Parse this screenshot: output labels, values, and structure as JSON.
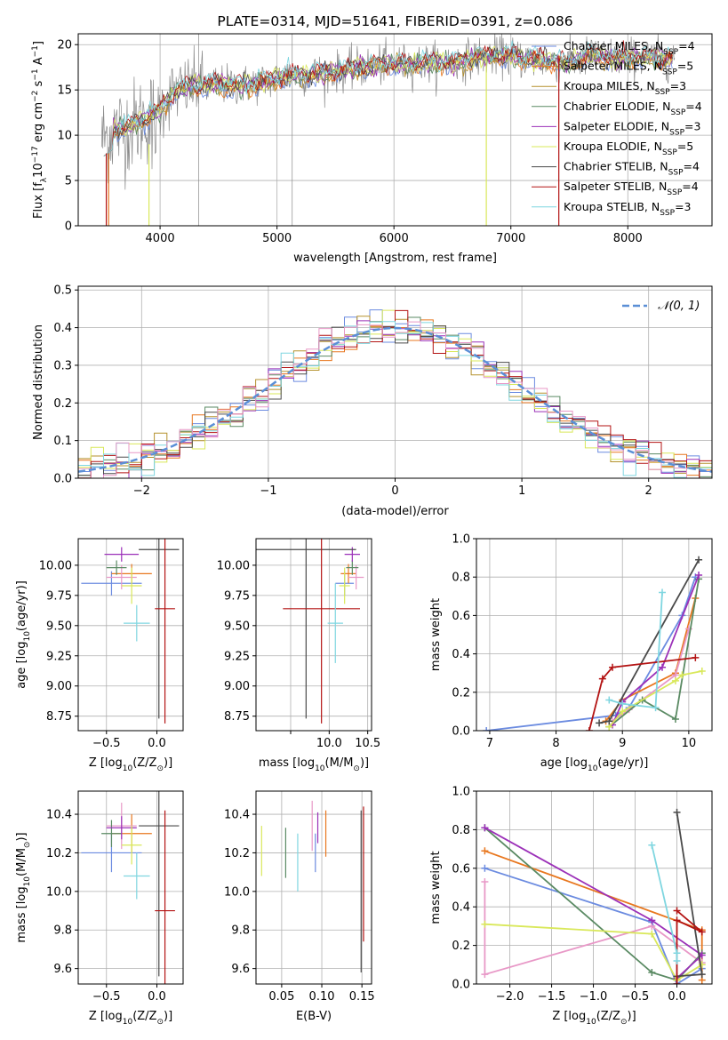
{
  "chart_data": [
    {
      "id": "spectrum",
      "type": "line",
      "title": "PLATE=0314, MJD=51641, FIBERID=0391, z=0.086",
      "xlabel": "wavelength [Angstrom, rest frame]",
      "ylabel": "Flux [fλ10⁻¹⁷ erg cm⁻² s⁻¹ A⁻¹]",
      "xlim": [
        3300,
        8720
      ],
      "ylim": [
        0,
        21.2
      ],
      "xticks": [
        4000,
        5000,
        6000,
        7000,
        8000
      ],
      "yticks": [
        0,
        5,
        10,
        15,
        20
      ],
      "grid": true,
      "legend_position": "top-right",
      "continuum": {
        "x": [
          3500,
          3600,
          3700,
          3800,
          3900,
          4000,
          4100,
          4300,
          4500,
          4700,
          4900,
          5100,
          5300,
          5500,
          5700,
          5900,
          6100,
          6300,
          6500,
          6700,
          6900,
          7100,
          7300,
          7500,
          7700,
          7900,
          8100,
          8300,
          8400
        ],
        "y": [
          9.5,
          10.5,
          10.8,
          11.3,
          12.0,
          12.8,
          14.6,
          15.5,
          15.6,
          15.5,
          15.9,
          16.6,
          16.7,
          17.0,
          17.4,
          17.8,
          17.8,
          18.0,
          18.0,
          18.6,
          18.8,
          18.5,
          18.2,
          18.0,
          18.8,
          18.5,
          18.6,
          18.5,
          18.5
        ]
      },
      "series": [
        {
          "name": "Chabrier MILES, N",
          "sub": "SSP",
          "suffix": "=4",
          "color": "#6b8be0"
        },
        {
          "name": "Salpeter MILES, N",
          "sub": "SSP",
          "suffix": "=5",
          "color": "#e8771f"
        },
        {
          "name": "Kroupa MILES, N",
          "sub": "SSP",
          "suffix": "=3",
          "color": "#b5922e"
        },
        {
          "name": "Chabrier ELODIE, N",
          "sub": "SSP",
          "suffix": "=4",
          "color": "#5a8a63"
        },
        {
          "name": "Salpeter ELODIE, N",
          "sub": "SSP",
          "suffix": "=3",
          "color": "#9b30b8"
        },
        {
          "name": "Kroupa ELODIE, N",
          "sub": "SSP",
          "suffix": "=5",
          "color": "#d9e85a"
        },
        {
          "name": "Chabrier STELIB, N",
          "sub": "SSP",
          "suffix": "=4",
          "color": "#4a4a4a"
        },
        {
          "name": "Salpeter STELIB, N",
          "sub": "SSP",
          "suffix": "=4",
          "color": "#b31313"
        },
        {
          "name": "Kroupa STELIB, N",
          "sub": "SSP",
          "suffix": "=3",
          "color": "#7fd6e0"
        }
      ],
      "data_color": "#8a8a8a"
    },
    {
      "id": "residuals",
      "type": "line",
      "xlabel": "(data-model)/error",
      "ylabel": "Normed distribution",
      "xlim": [
        -2.5,
        2.5
      ],
      "ylim": [
        0,
        0.51
      ],
      "xticks": [
        -2,
        -1,
        0,
        1,
        2
      ],
      "yticks": [
        0.0,
        0.1,
        0.2,
        0.3,
        0.4,
        0.5
      ],
      "grid": true,
      "legend": "𝒩(0, 1)",
      "legend_position": "top-right",
      "bin_width": 0.1,
      "gaussian_color": "#5b8fd6"
    },
    {
      "id": "age-vs-Z",
      "type": "scatter",
      "xlabel": "Z [log₁₀(Z/Z⊙)]",
      "ylabel": "age  [log₁₀(age/yr)]",
      "xlim": [
        -0.78,
        0.26
      ],
      "ylim": [
        8.63,
        10.22
      ],
      "xticks": [
        -0.5,
        0.0
      ],
      "yticks": [
        8.75,
        9.0,
        9.25,
        9.5,
        9.75,
        10.0
      ],
      "grid": true,
      "points": [
        {
          "x": -0.45,
          "y": 9.85,
          "xerr": 0.3,
          "yerr": 0.1,
          "color": "#6b8be0"
        },
        {
          "x": -0.25,
          "y": 9.93,
          "xerr": 0.2,
          "yerr": 0.08,
          "color": "#e8771f"
        },
        {
          "x": -0.35,
          "y": 9.9,
          "xerr": 0.15,
          "yerr": 0.1,
          "color": "#e898c7"
        },
        {
          "x": -0.4,
          "y": 9.98,
          "xerr": 0.1,
          "yerr": 0.06,
          "color": "#5a8a63"
        },
        {
          "x": -0.35,
          "y": 10.09,
          "xerr": 0.17,
          "yerr": 0.06,
          "color": "#9b30b8"
        },
        {
          "x": -0.25,
          "y": 9.83,
          "xerr": 0.1,
          "yerr": 0.15,
          "color": "#d9e85a"
        },
        {
          "x": 0.02,
          "y": 10.13,
          "xerr": 0.2,
          "yerr": 1.4,
          "color": "#4a4a4a"
        },
        {
          "x": 0.08,
          "y": 9.64,
          "xerr": 0.1,
          "yerr": 0.95,
          "color": "#b31313"
        },
        {
          "x": -0.2,
          "y": 9.52,
          "xerr": 0.13,
          "yerr": 0.15,
          "color": "#7fd6e0"
        }
      ]
    },
    {
      "id": "age-vs-mass",
      "type": "scatter",
      "xlabel": "mass [log₁₀(M/M⊙)]",
      "ylabel": "",
      "xlim": [
        9.05,
        10.55
      ],
      "ylim": [
        8.63,
        10.22
      ],
      "xticks": [
        9.5,
        10.0,
        10.5
      ],
      "xticklabels": [
        "",
        "10.0",
        "10.5"
      ],
      "yticks": [
        8.75,
        9.0,
        9.25,
        9.5,
        9.75,
        10.0
      ],
      "grid": true,
      "points": [
        {
          "x": 10.2,
          "y": 9.85,
          "xerr": 0.12,
          "yerr": 0.1,
          "color": "#6b8be0"
        },
        {
          "x": 10.25,
          "y": 9.93,
          "xerr": 0.1,
          "yerr": 0.08,
          "color": "#e8771f"
        },
        {
          "x": 10.35,
          "y": 9.9,
          "xerr": 0.1,
          "yerr": 0.1,
          "color": "#e898c7"
        },
        {
          "x": 10.3,
          "y": 9.98,
          "xerr": 0.08,
          "yerr": 0.06,
          "color": "#5a8a63"
        },
        {
          "x": 10.3,
          "y": 10.09,
          "xerr": 0.1,
          "yerr": 0.06,
          "color": "#9b30b8"
        },
        {
          "x": 10.2,
          "y": 9.83,
          "xerr": 0.07,
          "yerr": 0.15,
          "color": "#d9e85a"
        },
        {
          "x": 9.7,
          "y": 10.13,
          "xerr": 0.65,
          "yerr": 1.4,
          "color": "#4a4a4a"
        },
        {
          "x": 9.9,
          "y": 9.64,
          "xerr": 0.5,
          "yerr": 0.95,
          "color": "#b31313"
        },
        {
          "x": 10.08,
          "y": 9.52,
          "xerr": 0.1,
          "yerr": 0.33,
          "color": "#7fd6e0"
        }
      ]
    },
    {
      "id": "weight-vs-age",
      "type": "line",
      "xlabel": "age  [log₁₀(age/yr)]",
      "ylabel": "mass weight",
      "xlim": [
        6.8,
        10.35
      ],
      "ylim": [
        0,
        1.0
      ],
      "xticks": [
        7,
        8,
        9,
        10
      ],
      "yticks": [
        0.0,
        0.2,
        0.4,
        0.6,
        0.8,
        1.0
      ],
      "grid": true,
      "series": [
        {
          "color": "#6b8be0",
          "points": [
            [
              6.95,
              0.0
            ],
            [
              8.9,
              0.08
            ],
            [
              9.1,
              0.12
            ],
            [
              9.9,
              0.6
            ],
            [
              10.1,
              0.8
            ]
          ]
        },
        {
          "color": "#e8771f",
          "points": [
            [
              8.75,
              0.05
            ],
            [
              9.0,
              0.16
            ],
            [
              9.8,
              0.3
            ],
            [
              10.1,
              0.69
            ]
          ]
        },
        {
          "color": "#e898c7",
          "points": [
            [
              8.85,
              0.05
            ],
            [
              9.1,
              0.11
            ],
            [
              9.8,
              0.29
            ],
            [
              10.0,
              0.53
            ]
          ]
        },
        {
          "color": "#5a8a63",
          "points": [
            [
              8.8,
              0.02
            ],
            [
              9.3,
              0.16
            ],
            [
              9.8,
              0.06
            ],
            [
              10.15,
              0.79
            ]
          ]
        },
        {
          "color": "#9b30b8",
          "points": [
            [
              8.85,
              0.03
            ],
            [
              9.0,
              0.15
            ],
            [
              9.6,
              0.33
            ],
            [
              10.15,
              0.81
            ]
          ]
        },
        {
          "color": "#d9e85a",
          "points": [
            [
              8.8,
              0.02
            ],
            [
              9.0,
              0.1
            ],
            [
              9.8,
              0.26
            ],
            [
              9.9,
              0.29
            ],
            [
              10.2,
              0.31
            ]
          ]
        },
        {
          "color": "#4a4a4a",
          "points": [
            [
              8.65,
              0.04
            ],
            [
              8.8,
              0.05
            ],
            [
              10.15,
              0.89
            ]
          ]
        },
        {
          "color": "#b31313",
          "points": [
            [
              8.5,
              0.0
            ],
            [
              8.7,
              0.27
            ],
            [
              8.85,
              0.33
            ],
            [
              10.1,
              0.38
            ]
          ]
        },
        {
          "color": "#7fd6e0",
          "points": [
            [
              8.8,
              0.16
            ],
            [
              9.0,
              0.14
            ],
            [
              9.5,
              0.12
            ],
            [
              9.6,
              0.72
            ]
          ]
        }
      ]
    },
    {
      "id": "mass-vs-Z",
      "type": "scatter",
      "xlabel": "Z [log₁₀(Z/Z⊙)]",
      "ylabel": "mass [log₁₀(M/M⊙)]",
      "xlim": [
        -0.78,
        0.26
      ],
      "ylim": [
        9.52,
        10.52
      ],
      "xticks": [
        -0.5,
        0.0
      ],
      "yticks": [
        9.6,
        9.8,
        10.0,
        10.2,
        10.4
      ],
      "grid": true,
      "points": [
        {
          "x": -0.45,
          "y": 10.2,
          "xerr": 0.3,
          "yerr": 0.1,
          "color": "#6b8be0"
        },
        {
          "x": -0.25,
          "y": 10.3,
          "xerr": 0.2,
          "yerr": 0.1,
          "color": "#e8771f"
        },
        {
          "x": -0.35,
          "y": 10.34,
          "xerr": 0.15,
          "yerr": 0.12,
          "color": "#e898c7"
        },
        {
          "x": -0.45,
          "y": 10.3,
          "xerr": 0.1,
          "yerr": 0.07,
          "color": "#5a8a63"
        },
        {
          "x": -0.35,
          "y": 10.33,
          "xerr": 0.15,
          "yerr": 0.06,
          "color": "#9b30b8"
        },
        {
          "x": -0.25,
          "y": 10.24,
          "xerr": 0.1,
          "yerr": 0.1,
          "color": "#d9e85a"
        },
        {
          "x": 0.02,
          "y": 10.34,
          "xerr": 0.2,
          "yerr": 0.78,
          "color": "#4a4a4a"
        },
        {
          "x": 0.08,
          "y": 9.9,
          "xerr": 0.1,
          "yerr": 0.52,
          "color": "#b31313"
        },
        {
          "x": -0.2,
          "y": 10.08,
          "xerr": 0.13,
          "yerr": 0.12,
          "color": "#7fd6e0"
        }
      ]
    },
    {
      "id": "mass-vs-ebv",
      "type": "scatter",
      "xlabel": "E(B-V)",
      "ylabel": "",
      "xlim": [
        0.018,
        0.162
      ],
      "ylim": [
        9.52,
        10.52
      ],
      "xticks": [
        0.05,
        0.1,
        0.15
      ],
      "xticklabels": [
        "0.05",
        "0.10",
        "0.15"
      ],
      "yticks": [
        9.6,
        9.8,
        10.0,
        10.2,
        10.4
      ],
      "grid": true,
      "points": [
        {
          "x": 0.092,
          "y": 10.2,
          "xerr": 0,
          "yerr": 0.1,
          "color": "#6b8be0"
        },
        {
          "x": 0.105,
          "y": 10.3,
          "xerr": 0,
          "yerr": 0.12,
          "color": "#e8771f"
        },
        {
          "x": 0.088,
          "y": 10.34,
          "xerr": 0,
          "yerr": 0.13,
          "color": "#e898c7"
        },
        {
          "x": 0.055,
          "y": 10.2,
          "xerr": 0,
          "yerr": 0.13,
          "color": "#5a8a63"
        },
        {
          "x": 0.095,
          "y": 10.33,
          "xerr": 0,
          "yerr": 0.08,
          "color": "#9b30b8"
        },
        {
          "x": 0.025,
          "y": 10.21,
          "xerr": 0,
          "yerr": 0.13,
          "color": "#d9e85a"
        },
        {
          "x": 0.149,
          "y": 10.0,
          "xerr": 0,
          "yerr": 0.42,
          "color": "#4a4a4a"
        },
        {
          "x": 0.152,
          "y": 10.09,
          "xerr": 0,
          "yerr": 0.35,
          "color": "#b31313"
        },
        {
          "x": 0.07,
          "y": 10.15,
          "xerr": 0,
          "yerr": 0.15,
          "color": "#7fd6e0"
        }
      ]
    },
    {
      "id": "weight-vs-Z",
      "type": "line",
      "xlabel": "Z [log₁₀(Z/Z⊙)]",
      "ylabel": "mass weight",
      "xlim": [
        -2.4,
        0.42
      ],
      "ylim": [
        0,
        1.0
      ],
      "xticks": [
        -2.0,
        -1.5,
        -1.0,
        -0.5,
        0.0
      ],
      "yticks": [
        0.0,
        0.2,
        0.4,
        0.6,
        0.8,
        1.0
      ],
      "grid": true,
      "series": [
        {
          "color": "#6b8be0",
          "points": [
            [
              -2.3,
              0.6
            ],
            [
              -0.3,
              0.32
            ],
            [
              0.0,
              0.0
            ],
            [
              0.3,
              0.08
            ]
          ]
        },
        {
          "color": "#e8771f",
          "points": [
            [
              -2.3,
              0.69
            ],
            [
              0.3,
              0.28
            ],
            [
              0.3,
              0.02
            ]
          ]
        },
        {
          "color": "#e898c7",
          "points": [
            [
              -2.3,
              0.53
            ],
            [
              -2.3,
              0.05
            ],
            [
              -0.3,
              0.3
            ],
            [
              0.3,
              0.11
            ]
          ]
        },
        {
          "color": "#5a8a63",
          "points": [
            [
              -2.3,
              0.81
            ],
            [
              -0.3,
              0.06
            ],
            [
              0.0,
              0.02
            ],
            [
              0.3,
              0.16
            ]
          ]
        },
        {
          "color": "#9b30b8",
          "points": [
            [
              -2.3,
              0.81
            ],
            [
              -0.3,
              0.33
            ],
            [
              0.3,
              0.15
            ],
            [
              0.0,
              0.03
            ]
          ]
        },
        {
          "color": "#d9e85a",
          "points": [
            [
              -2.3,
              0.31
            ],
            [
              -0.3,
              0.26
            ],
            [
              0.0,
              0.02
            ],
            [
              0.3,
              0.1
            ]
          ]
        },
        {
          "color": "#4a4a4a",
          "points": [
            [
              0.0,
              0.89
            ],
            [
              0.3,
              0.05
            ],
            [
              0.0,
              0.04
            ]
          ]
        },
        {
          "color": "#b31313",
          "points": [
            [
              0.0,
              0.38
            ],
            [
              0.3,
              0.27
            ],
            [
              0.0,
              0.33
            ],
            [
              0.0,
              0.0
            ]
          ]
        },
        {
          "color": "#7fd6e0",
          "points": [
            [
              -0.3,
              0.72
            ],
            [
              0.0,
              0.16
            ],
            [
              0.0,
              0.12
            ]
          ]
        }
      ]
    }
  ]
}
